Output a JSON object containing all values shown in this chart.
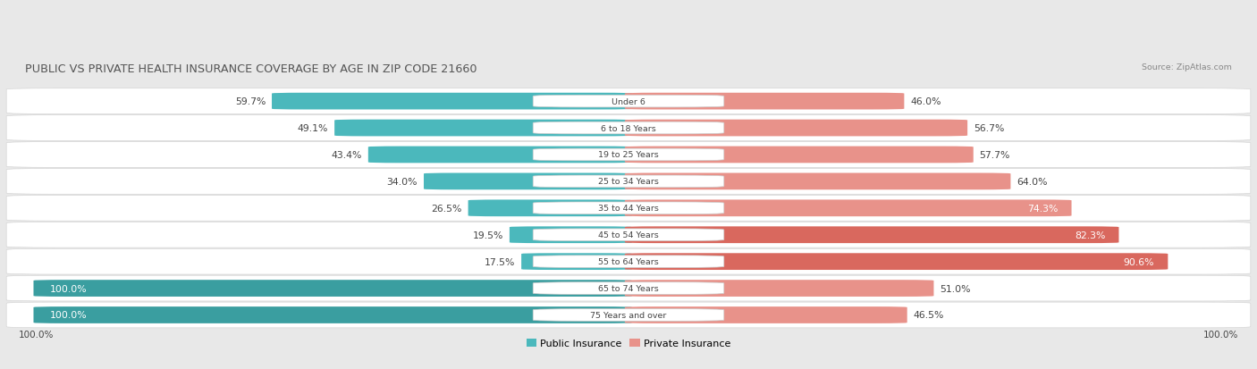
{
  "title": "PUBLIC VS PRIVATE HEALTH INSURANCE COVERAGE BY AGE IN ZIP CODE 21660",
  "source": "Source: ZipAtlas.com",
  "categories": [
    "Under 6",
    "6 to 18 Years",
    "19 to 25 Years",
    "25 to 34 Years",
    "35 to 44 Years",
    "45 to 54 Years",
    "55 to 64 Years",
    "65 to 74 Years",
    "75 Years and over"
  ],
  "public_values": [
    59.7,
    49.1,
    43.4,
    34.0,
    26.5,
    19.5,
    17.5,
    100.0,
    100.0
  ],
  "private_values": [
    46.0,
    56.7,
    57.7,
    64.0,
    74.3,
    82.3,
    90.6,
    51.0,
    46.5
  ],
  "public_color": "#4bb8bc",
  "private_color": "#e8928a",
  "public_color_100": "#3a9ea0",
  "private_color_90plus": "#d9685e",
  "bg_color": "#e8e8e8",
  "row_bg": "#f4f4f4",
  "row_border": "#d0d0d0",
  "title_color": "#555555",
  "label_color": "#444444",
  "white": "#ffffff",
  "legend_public": "Public Insurance",
  "legend_private": "Private Insurance",
  "left_axis_label": "100.0%",
  "right_axis_label": "100.0%"
}
